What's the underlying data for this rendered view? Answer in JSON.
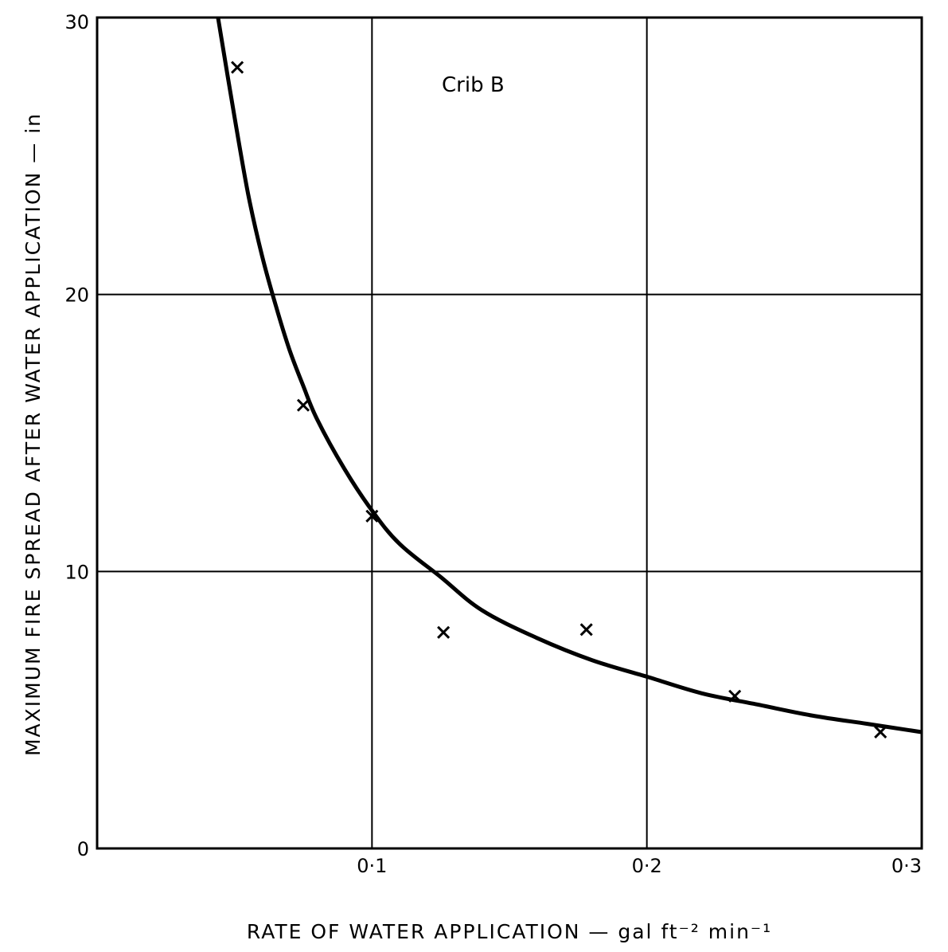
{
  "chart_data": {
    "type": "scatter",
    "title": "",
    "annotation": "Crib B",
    "xlabel": "RATE OF WATER APPLICATION — gal ft⁻² min⁻¹",
    "ylabel": "MAXIMUM FIRE SPREAD AFTER WATER APPLICATION — in",
    "xlim": [
      0,
      0.3
    ],
    "ylim": [
      0,
      30
    ],
    "x_ticks": [
      {
        "value": 0.1,
        "label": "0·1"
      },
      {
        "value": 0.2,
        "label": "0·2"
      },
      {
        "value": 0.3,
        "label": "0·3"
      }
    ],
    "y_ticks": [
      {
        "value": 0,
        "label": "0"
      },
      {
        "value": 10,
        "label": "10"
      },
      {
        "value": 20,
        "label": "20"
      },
      {
        "value": 30,
        "label": "30"
      }
    ],
    "grid": true,
    "series": [
      {
        "marker": "x",
        "points": [
          {
            "x": 0.051,
            "y": 28.2
          },
          {
            "x": 0.075,
            "y": 16.0
          },
          {
            "x": 0.1,
            "y": 12.0
          },
          {
            "x": 0.126,
            "y": 7.8
          },
          {
            "x": 0.178,
            "y": 7.9
          },
          {
            "x": 0.232,
            "y": 5.5
          },
          {
            "x": 0.285,
            "y": 4.2
          }
        ]
      },
      {
        "type": "line",
        "smooth": true,
        "points": [
          {
            "x": 0.044,
            "y": 30.0
          },
          {
            "x": 0.05,
            "y": 26.4
          },
          {
            "x": 0.055,
            "y": 23.6
          },
          {
            "x": 0.06,
            "y": 21.4
          },
          {
            "x": 0.065,
            "y": 19.6
          },
          {
            "x": 0.07,
            "y": 18.0
          },
          {
            "x": 0.075,
            "y": 16.7
          },
          {
            "x": 0.08,
            "y": 15.5
          },
          {
            "x": 0.09,
            "y": 13.7
          },
          {
            "x": 0.1,
            "y": 12.2
          },
          {
            "x": 0.11,
            "y": 11.0
          },
          {
            "x": 0.125,
            "y": 9.8
          },
          {
            "x": 0.14,
            "y": 8.6
          },
          {
            "x": 0.16,
            "y": 7.6
          },
          {
            "x": 0.18,
            "y": 6.8
          },
          {
            "x": 0.2,
            "y": 6.2
          },
          {
            "x": 0.22,
            "y": 5.6
          },
          {
            "x": 0.24,
            "y": 5.2
          },
          {
            "x": 0.26,
            "y": 4.8
          },
          {
            "x": 0.28,
            "y": 4.5
          },
          {
            "x": 0.3,
            "y": 4.2
          }
        ]
      }
    ]
  }
}
